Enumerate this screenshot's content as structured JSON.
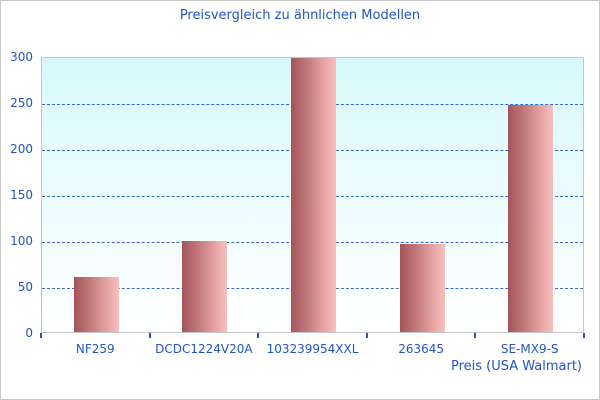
{
  "window": {
    "background": "#ffffff",
    "border_color": "#c9c9c9"
  },
  "chart_data": {
    "type": "bar",
    "title": "Preisvergleich zu ähnlichen Modellen",
    "xlabel": "Preis (USA Walmart)",
    "ylabel": "",
    "categories": [
      "NF259",
      "DCDC1224V20A",
      "103239954XXL",
      "263645",
      "SE-MX9-S"
    ],
    "values": [
      60,
      100,
      300,
      96,
      249
    ],
    "ylim": [
      0,
      300
    ],
    "yticks": [
      0,
      50,
      100,
      150,
      200,
      250,
      300
    ],
    "grid": "horizontal-dashed",
    "legend": "none",
    "style": {
      "label_color": "#2154cd",
      "grid_color": "#3a66c9",
      "plot_border_color": "#c6c6c6",
      "plot_bg_top": "#d6f9fc",
      "plot_bg_bottom": "#ffffff",
      "bar_gradient_left": "#a5545a",
      "bar_gradient_right": "#f9bfbf"
    }
  }
}
